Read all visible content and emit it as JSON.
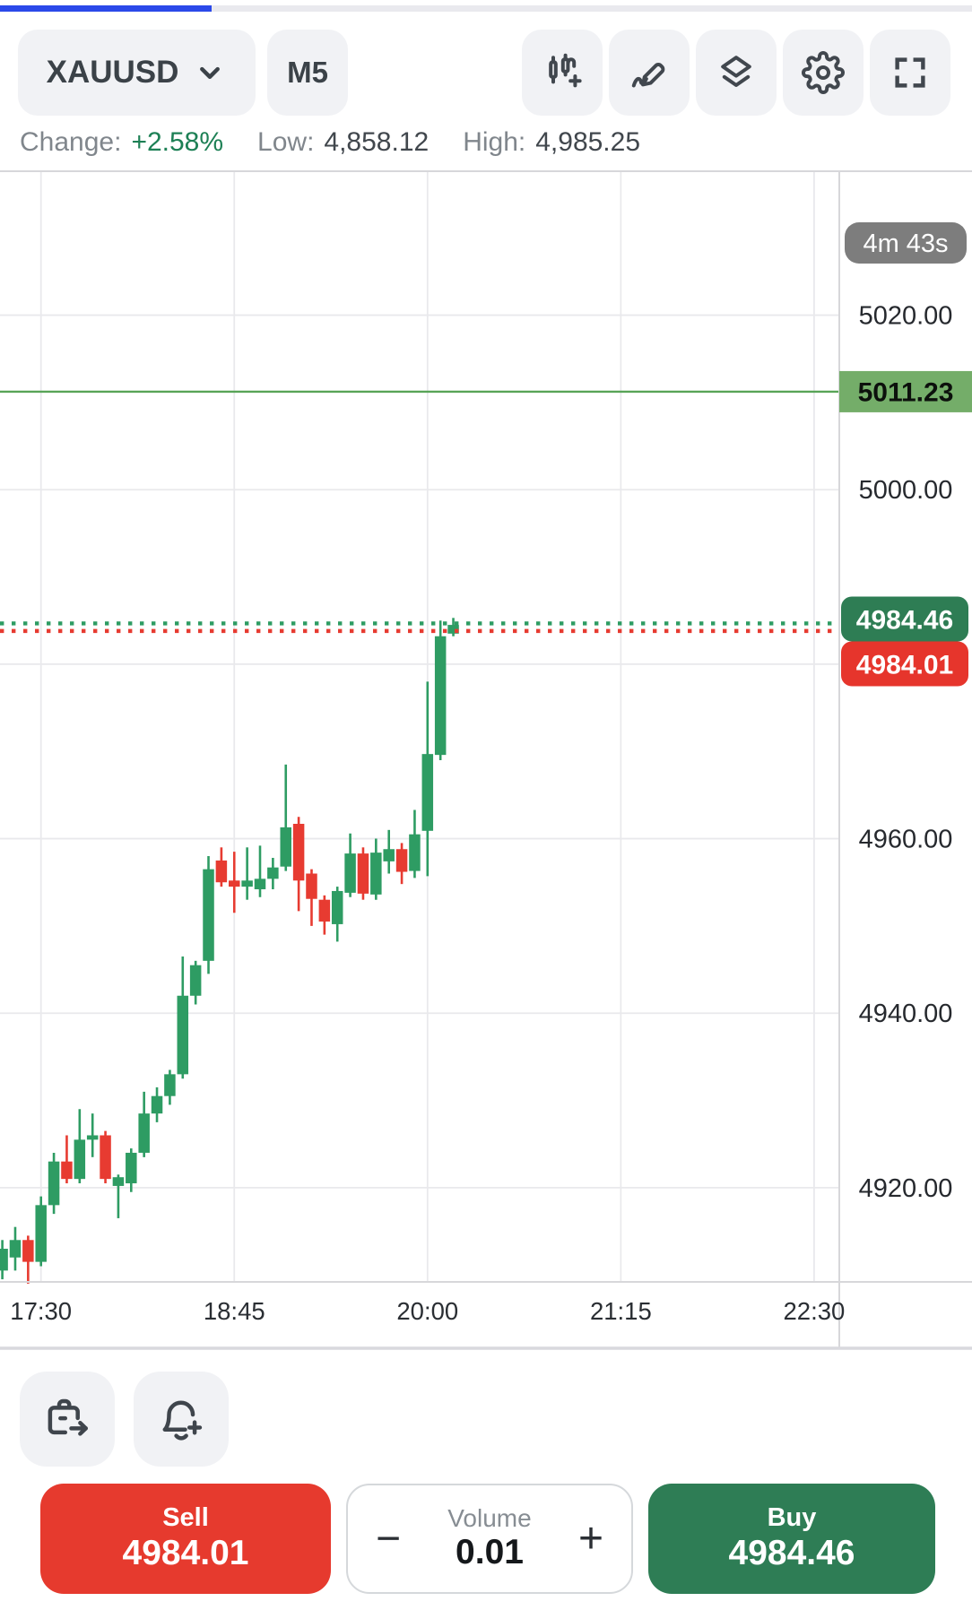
{
  "header": {
    "symbol": "XAUUSD",
    "timeframe": "M5",
    "toolbar_icons": [
      "indicator-add",
      "draw",
      "layers",
      "settings",
      "fullscreen"
    ]
  },
  "stats": {
    "change_label": "Change:",
    "change_value": "+2.58%",
    "low_label": "Low:",
    "low_value": "4,858.12",
    "high_label": "High:",
    "high_value": "4,985.25"
  },
  "chart_data": {
    "type": "candlestick",
    "symbol": "XAUUSD",
    "timeframe_minutes": 5,
    "timer_badge": "4m 43s",
    "grid": true,
    "y_top": 5036.6,
    "y_bottom": 4909.2,
    "price_axis": {
      "tick_labels": [
        "5020.00",
        "5000.00",
        "4960.00",
        "4940.00",
        "4920.00"
      ],
      "tick_values": [
        5020,
        5000,
        4960,
        4940,
        4920
      ],
      "gridline_values": [
        5020,
        5000,
        4980,
        4960,
        4940,
        4920
      ]
    },
    "time_axis": {
      "ticks": [
        {
          "label": "17:30",
          "candle_index": 3
        },
        {
          "label": "18:45",
          "candle_index": 18
        },
        {
          "label": "20:00",
          "candle_index": 33
        },
        {
          "label": "21:15",
          "candle_index": 48
        },
        {
          "label": "22:30",
          "candle_index": 63
        }
      ]
    },
    "level_line": {
      "price": 5011.23,
      "label": "5011.23"
    },
    "ask": {
      "price": 4984.46,
      "label": "4984.46"
    },
    "bid": {
      "price": 4984.01,
      "label": "4984.01"
    },
    "colors": {
      "bull": "#2e9c63",
      "bear": "#e73b31",
      "ask_label_bg": "#2e7d54",
      "bid_label_bg": "#e6352c",
      "level_line": "#58a457",
      "level_label_bg": "#74ad69",
      "timer_bg": "#7d7d7d",
      "grid": "#e9e9ec",
      "border": "#d7d7da",
      "axis_text": "#26292e",
      "time_text": "#2a2e33"
    },
    "candles": [
      {
        "t": "17:15",
        "o": 4910.5,
        "h": 4914.0,
        "l": 4909.5,
        "c": 4913.0
      },
      {
        "t": "17:20",
        "o": 4912.0,
        "h": 4915.5,
        "l": 4910.5,
        "c": 4914.0
      },
      {
        "t": "17:25",
        "o": 4914.0,
        "h": 4914.5,
        "l": 4909.0,
        "c": 4911.5
      },
      {
        "t": "17:30",
        "o": 4911.5,
        "h": 4919.0,
        "l": 4911.0,
        "c": 4918.0
      },
      {
        "t": "17:35",
        "o": 4918.0,
        "h": 4924.0,
        "l": 4917.0,
        "c": 4923.0
      },
      {
        "t": "17:40",
        "o": 4923.0,
        "h": 4926.0,
        "l": 4920.5,
        "c": 4921.0
      },
      {
        "t": "17:45",
        "o": 4921.0,
        "h": 4929.0,
        "l": 4920.5,
        "c": 4925.5
      },
      {
        "t": "17:50",
        "o": 4925.5,
        "h": 4928.5,
        "l": 4923.5,
        "c": 4926.0
      },
      {
        "t": "17:55",
        "o": 4926.0,
        "h": 4926.5,
        "l": 4920.5,
        "c": 4921.0
      },
      {
        "t": "18:00",
        "o": 4920.2,
        "h": 4921.5,
        "l": 4916.5,
        "c": 4921.2
      },
      {
        "t": "18:05",
        "o": 4920.5,
        "h": 4924.5,
        "l": 4919.5,
        "c": 4924.0
      },
      {
        "t": "18:10",
        "o": 4924.0,
        "h": 4931.0,
        "l": 4923.5,
        "c": 4928.5
      },
      {
        "t": "18:15",
        "o": 4928.5,
        "h": 4931.5,
        "l": 4927.5,
        "c": 4930.5
      },
      {
        "t": "18:20",
        "o": 4930.5,
        "h": 4933.5,
        "l": 4929.5,
        "c": 4933.0
      },
      {
        "t": "18:25",
        "o": 4933.0,
        "h": 4946.5,
        "l": 4932.5,
        "c": 4942.0
      },
      {
        "t": "18:30",
        "o": 4942.0,
        "h": 4946.0,
        "l": 4941.0,
        "c": 4945.5
      },
      {
        "t": "18:35",
        "o": 4946.0,
        "h": 4958.0,
        "l": 4944.5,
        "c": 4956.5
      },
      {
        "t": "18:40",
        "o": 4957.5,
        "h": 4959.0,
        "l": 4954.5,
        "c": 4955.0
      },
      {
        "t": "18:45",
        "o": 4955.2,
        "h": 4958.5,
        "l": 4951.5,
        "c": 4954.5
      },
      {
        "t": "18:50",
        "o": 4954.5,
        "h": 4959.0,
        "l": 4953.0,
        "c": 4955.2
      },
      {
        "t": "18:55",
        "o": 4954.2,
        "h": 4959.2,
        "l": 4953.3,
        "c": 4955.4
      },
      {
        "t": "19:00",
        "o": 4955.4,
        "h": 4957.8,
        "l": 4954.2,
        "c": 4956.7
      },
      {
        "t": "19:05",
        "o": 4956.8,
        "h": 4968.5,
        "l": 4956.3,
        "c": 4961.3
      },
      {
        "t": "19:10",
        "o": 4961.7,
        "h": 4962.5,
        "l": 4951.7,
        "c": 4955.2
      },
      {
        "t": "19:15",
        "o": 4956.0,
        "h": 4956.5,
        "l": 4950.0,
        "c": 4953.1
      },
      {
        "t": "19:20",
        "o": 4953.0,
        "h": 4953.5,
        "l": 4949.0,
        "c": 4950.5
      },
      {
        "t": "19:25",
        "o": 4950.2,
        "h": 4954.5,
        "l": 4948.2,
        "c": 4954.0
      },
      {
        "t": "19:30",
        "o": 4953.8,
        "h": 4960.6,
        "l": 4953.3,
        "c": 4958.3
      },
      {
        "t": "19:35",
        "o": 4958.3,
        "h": 4959.0,
        "l": 4953.0,
        "c": 4953.7
      },
      {
        "t": "19:40",
        "o": 4953.6,
        "h": 4960.0,
        "l": 4953.0,
        "c": 4958.4
      },
      {
        "t": "19:45",
        "o": 4957.4,
        "h": 4961.0,
        "l": 4956.0,
        "c": 4958.8
      },
      {
        "t": "19:50",
        "o": 4958.8,
        "h": 4959.5,
        "l": 4954.8,
        "c": 4956.2
      },
      {
        "t": "19:55",
        "o": 4956.3,
        "h": 4963.3,
        "l": 4955.5,
        "c": 4960.5
      },
      {
        "t": "20:00",
        "o": 4960.9,
        "h": 4978.0,
        "l": 4955.7,
        "c": 4969.7
      },
      {
        "t": "20:05",
        "o": 4969.6,
        "h": 4985.0,
        "l": 4969.0,
        "c": 4983.2
      },
      {
        "t": "20:10",
        "o": 4983.5,
        "h": 4985.3,
        "l": 4983.2,
        "c": 4984.5
      }
    ]
  },
  "quick_actions": [
    "trade-export",
    "alert-add"
  ],
  "footer": {
    "sell": {
      "label": "Sell",
      "price": "4984.01"
    },
    "volume": {
      "label": "Volume",
      "value": "0.01",
      "minus": "−",
      "plus": "+"
    },
    "buy": {
      "label": "Buy",
      "price": "4984.46"
    }
  }
}
